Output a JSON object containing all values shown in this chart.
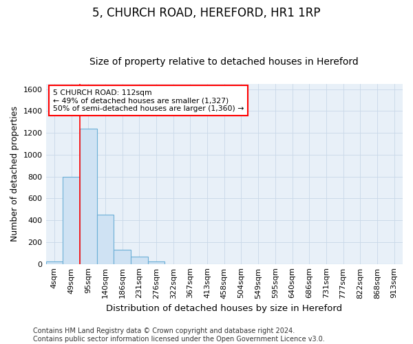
{
  "title1": "5, CHURCH ROAD, HEREFORD, HR1 1RP",
  "title2": "Size of property relative to detached houses in Hereford",
  "xlabel": "Distribution of detached houses by size in Hereford",
  "ylabel": "Number of detached properties",
  "categories": [
    "4sqm",
    "49sqm",
    "95sqm",
    "140sqm",
    "186sqm",
    "231sqm",
    "276sqm",
    "322sqm",
    "367sqm",
    "413sqm",
    "458sqm",
    "504sqm",
    "549sqm",
    "595sqm",
    "640sqm",
    "686sqm",
    "731sqm",
    "777sqm",
    "822sqm",
    "868sqm",
    "913sqm"
  ],
  "bar_values": [
    25,
    800,
    1240,
    450,
    130,
    65,
    25,
    0,
    0,
    0,
    0,
    0,
    0,
    0,
    0,
    0,
    0,
    0,
    0,
    0,
    0
  ],
  "bar_color": "#cfe2f3",
  "bar_edgecolor": "#6aaed6",
  "vline_color": "red",
  "vline_pos": 1.5,
  "annotation_line1": "5 CHURCH ROAD: 112sqm",
  "annotation_line2": "← 49% of detached houses are smaller (1,327)",
  "annotation_line3": "50% of semi-detached houses are larger (1,360) →",
  "annotation_box_color": "red",
  "ylim": [
    0,
    1650
  ],
  "yticks": [
    0,
    200,
    400,
    600,
    800,
    1000,
    1200,
    1400,
    1600
  ],
  "grid_color": "#c8d8e8",
  "footer": "Contains HM Land Registry data © Crown copyright and database right 2024.\nContains public sector information licensed under the Open Government Licence v3.0.",
  "title1_fontsize": 12,
  "title2_fontsize": 10,
  "xlabel_fontsize": 9.5,
  "ylabel_fontsize": 9,
  "tick_fontsize": 8,
  "footer_fontsize": 7,
  "bg_color": "#ffffff",
  "plot_bg_color": "#e8f0f8"
}
